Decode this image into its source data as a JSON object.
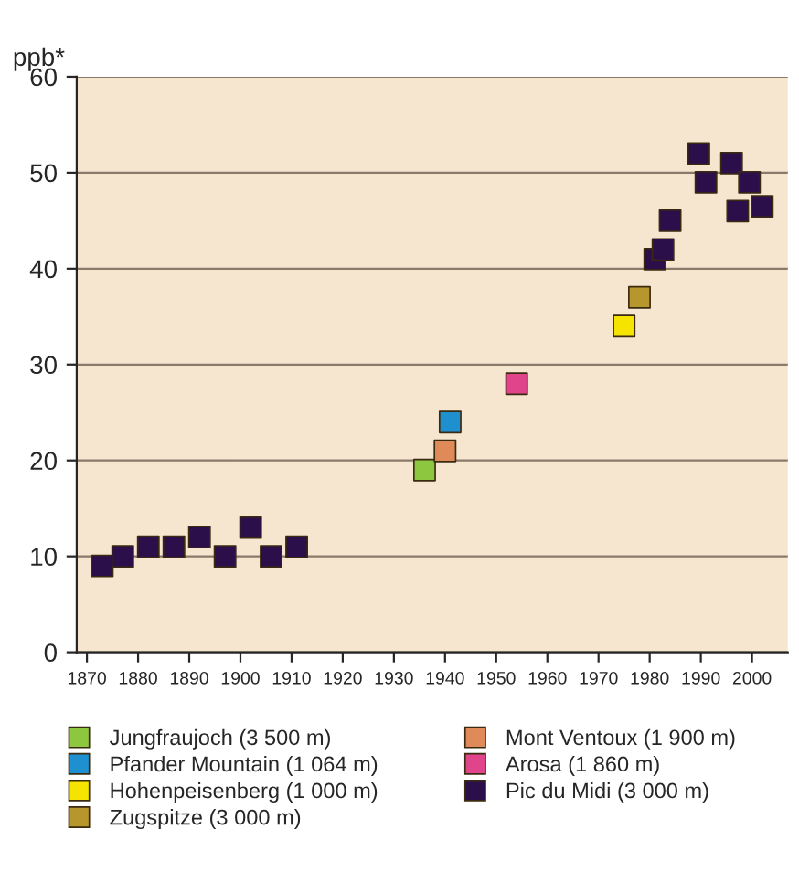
{
  "chart_data": {
    "type": "scatter",
    "ylabel": "ppb*",
    "marker": "square",
    "grid": "y",
    "legend": "bottom",
    "xlim": [
      1868,
      2007
    ],
    "xticks": [
      1870,
      1880,
      1890,
      1900,
      1910,
      1920,
      1930,
      1940,
      1950,
      1960,
      1970,
      1980,
      1990,
      2000
    ],
    "ylim": [
      0,
      60
    ],
    "yticks": [
      0,
      10,
      20,
      30,
      40,
      50,
      60
    ],
    "series": [
      {
        "name": "Jungfraujoch (3 500 m)",
        "color": "#8dc63f",
        "x": [
          1936
        ],
        "values": [
          19
        ]
      },
      {
        "name": "Pfander Mountain (1 064 m)",
        "color": "#1e90d0",
        "x": [
          1941
        ],
        "values": [
          24
        ]
      },
      {
        "name": "Hohenpeisenberg (1 000 m)",
        "color": "#f5e400",
        "x": [
          1975
        ],
        "values": [
          34
        ]
      },
      {
        "name": "Zugspitze (3 000 m)",
        "color": "#b8962e",
        "x": [
          1978
        ],
        "values": [
          37
        ]
      },
      {
        "name": "Mont Ventoux (1 900 m)",
        "color": "#e08a5a",
        "x": [
          1940
        ],
        "values": [
          21
        ]
      },
      {
        "name": "Arosa (1 860 m)",
        "color": "#e0448a",
        "x": [
          1954
        ],
        "values": [
          28
        ]
      },
      {
        "name": "Pic du Midi (3 000 m)",
        "color": "#2a0f4a",
        "x": [
          1873,
          1877,
          1882,
          1887,
          1892,
          1897,
          1902,
          1906,
          1911,
          1981,
          1982.6,
          1984,
          1989.6,
          1991,
          1996,
          1997.2,
          1999.5,
          2002
        ],
        "values": [
          9,
          10,
          11,
          11,
          12,
          10,
          13,
          10,
          11,
          41,
          42,
          45,
          52,
          49,
          51,
          46,
          49,
          46.5
        ]
      }
    ]
  }
}
